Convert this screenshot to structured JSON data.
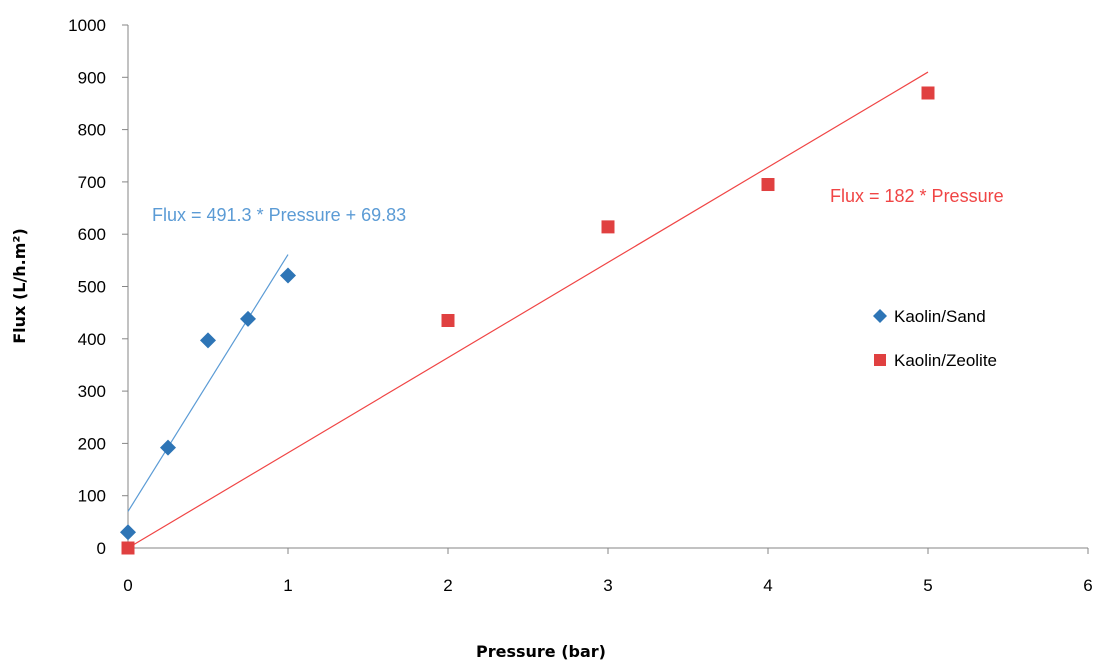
{
  "chart_data": {
    "type": "scatter",
    "xlabel": "Pressure (bar)",
    "ylabel": "Flux (L/h.m²)",
    "xlim": [
      0,
      6
    ],
    "ylim": [
      0,
      1000
    ],
    "x_ticks": [
      0,
      1,
      2,
      3,
      4,
      5,
      6
    ],
    "y_ticks": [
      0,
      100,
      200,
      300,
      400,
      500,
      600,
      700,
      800,
      900,
      1000
    ],
    "grid": false,
    "legend_position": "right",
    "series": [
      {
        "name": "Kaolin/Sand",
        "marker": "diamond",
        "color": "#2E75B6",
        "x": [
          0,
          0.25,
          0.5,
          0.75,
          1
        ],
        "y": [
          30,
          192,
          397,
          438,
          521
        ],
        "trendline": {
          "slope": 491.3,
          "intercept": 69.83,
          "x_range": [
            0,
            1
          ],
          "color": "#5B9BD5",
          "label": "Flux = 491.3 * Pressure + 69.83"
        }
      },
      {
        "name": "Kaolin/Zeolite",
        "marker": "square",
        "color": "#E04040",
        "x": [
          0,
          2,
          3,
          4,
          5
        ],
        "y": [
          0,
          435,
          614,
          695,
          870
        ],
        "trendline": {
          "slope": 182,
          "intercept": 0,
          "x_range": [
            0,
            5
          ],
          "color": "#F04545",
          "label": "Flux = 182 * Pressure"
        }
      }
    ]
  }
}
